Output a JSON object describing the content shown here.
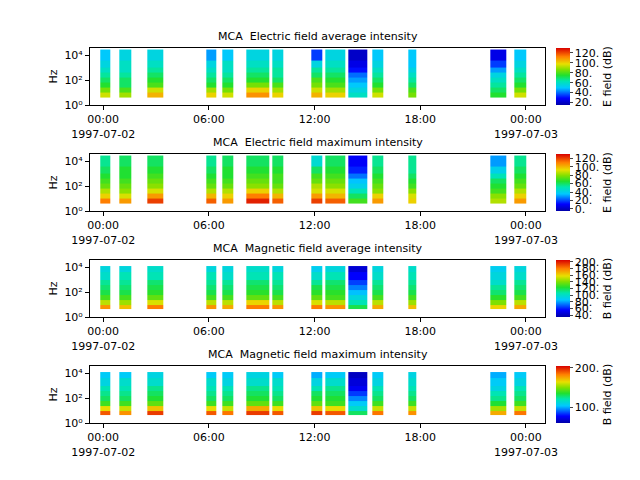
{
  "chart_data": [
    {
      "type": "heatmap",
      "title": "MCA  Electric field average intensity",
      "ylabel": "Hz",
      "log": "y",
      "xlim": [
        "1997-07-01 23:15",
        "1997-07-03 01:05"
      ],
      "xticks": [
        {
          "value": "1997-07-02 00:00",
          "label": "00:00\n1997-07-02"
        },
        {
          "value": "1997-07-02 06:00",
          "label": "06:00"
        },
        {
          "value": "1997-07-02 12:00",
          "label": "12:00"
        },
        {
          "value": "1997-07-02 18:00",
          "label": "18:00"
        },
        {
          "value": "1997-07-03 00:00",
          "label": "00:00\n1997-07-03"
        }
      ],
      "ylim": [
        1,
        40000
      ],
      "yticks": [
        {
          "value": 1,
          "label": "10⁰"
        },
        {
          "value": 100,
          "label": "10²"
        },
        {
          "value": 10000,
          "label": "10⁴"
        }
      ],
      "x": [
        [
          "1997-07-01 23:50",
          "1997-07-02 00:24"
        ],
        [
          "1997-07-02 00:54",
          "1997-07-02 01:36"
        ],
        [
          "1997-07-02 02:30",
          "1997-07-02 03:24"
        ],
        [
          "1997-07-02 05:51",
          "1997-07-02 06:24"
        ],
        [
          "1997-07-02 06:45",
          "1997-07-02 07:24"
        ],
        [
          "1997-07-02 08:06",
          "1997-07-02 09:24"
        ],
        [
          "1997-07-02 09:36",
          "1997-07-02 10:12"
        ],
        [
          "1997-07-02 11:48",
          "1997-07-02 12:27"
        ],
        [
          "1997-07-02 12:36",
          "1997-07-02 13:45"
        ],
        [
          "1997-07-02 13:54",
          "1997-07-02 15:00"
        ],
        [
          "1997-07-02 15:18",
          "1997-07-02 15:54"
        ],
        [
          "1997-07-02 17:18",
          "1997-07-02 17:45"
        ],
        [
          "1997-07-02 22:00",
          "1997-07-02 22:54"
        ],
        [
          "1997-07-02 23:21",
          "1997-07-03 00:00"
        ]
      ],
      "y": [
        4,
        10,
        25,
        63,
        160,
        400,
        1000,
        4000,
        30000
      ],
      "cells": [
        [
          95,
          85,
          75,
          70,
          65,
          60,
          55,
          50
        ],
        [
          90,
          80,
          70,
          70,
          65,
          60,
          60,
          55
        ],
        [
          105,
          95,
          80,
          75,
          70,
          65,
          60,
          55
        ],
        [
          100,
          90,
          75,
          70,
          65,
          60,
          55,
          45
        ],
        [
          95,
          85,
          75,
          70,
          65,
          60,
          60,
          50
        ],
        [
          110,
          100,
          85,
          75,
          70,
          65,
          60,
          55
        ],
        [
          100,
          90,
          80,
          70,
          65,
          65,
          60,
          55
        ],
        [
          105,
          95,
          85,
          80,
          70,
          65,
          55,
          35
        ],
        [
          100,
          90,
          80,
          75,
          70,
          65,
          60,
          55
        ],
        [
          60,
          55,
          50,
          45,
          40,
          30,
          25,
          20
        ],
        [
          95,
          85,
          75,
          70,
          65,
          60,
          55,
          50
        ],
        [
          85,
          80,
          70,
          65,
          60,
          55,
          50,
          50
        ],
        [
          75,
          70,
          65,
          60,
          55,
          45,
          35,
          25
        ],
        [
          95,
          85,
          75,
          70,
          65,
          60,
          55,
          50
        ]
      ],
      "colorbar": {
        "title": "E field (dB)",
        "zlim": [
          15,
          130
        ],
        "zticks": [
          {
            "value": 20,
            "label": "20."
          },
          {
            "value": 40,
            "label": "40."
          },
          {
            "value": 60,
            "label": "60."
          },
          {
            "value": 80,
            "label": "80."
          },
          {
            "value": 100,
            "label": "100."
          },
          {
            "value": 120,
            "label": "120."
          }
        ]
      }
    },
    {
      "type": "heatmap",
      "title": "MCA  Electric field maximum intensity",
      "ylabel": "Hz",
      "log": "y",
      "xlim": [
        "1997-07-01 23:15",
        "1997-07-03 01:05"
      ],
      "xticks": [
        {
          "value": "1997-07-02 00:00",
          "label": "00:00\n1997-07-02"
        },
        {
          "value": "1997-07-02 06:00",
          "label": "06:00"
        },
        {
          "value": "1997-07-02 12:00",
          "label": "12:00"
        },
        {
          "value": "1997-07-02 18:00",
          "label": "18:00"
        },
        {
          "value": "1997-07-03 00:00",
          "label": "00:00\n1997-07-03"
        }
      ],
      "ylim": [
        1,
        40000
      ],
      "yticks": [
        {
          "value": 1,
          "label": "10⁰"
        },
        {
          "value": 100,
          "label": "10²"
        },
        {
          "value": 10000,
          "label": "10⁴"
        }
      ],
      "x": [
        [
          "1997-07-01 23:50",
          "1997-07-02 00:24"
        ],
        [
          "1997-07-02 00:54",
          "1997-07-02 01:36"
        ],
        [
          "1997-07-02 02:30",
          "1997-07-02 03:24"
        ],
        [
          "1997-07-02 05:51",
          "1997-07-02 06:24"
        ],
        [
          "1997-07-02 06:45",
          "1997-07-02 07:24"
        ],
        [
          "1997-07-02 08:06",
          "1997-07-02 09:24"
        ],
        [
          "1997-07-02 09:36",
          "1997-07-02 10:12"
        ],
        [
          "1997-07-02 11:48",
          "1997-07-02 12:27"
        ],
        [
          "1997-07-02 12:36",
          "1997-07-02 13:45"
        ],
        [
          "1997-07-02 13:54",
          "1997-07-02 15:00"
        ],
        [
          "1997-07-02 15:18",
          "1997-07-02 15:54"
        ],
        [
          "1997-07-02 17:18",
          "1997-07-02 17:45"
        ],
        [
          "1997-07-02 22:00",
          "1997-07-02 22:54"
        ],
        [
          "1997-07-02 23:21",
          "1997-07-03 00:00"
        ]
      ],
      "y": [
        4,
        10,
        25,
        63,
        160,
        400,
        1000,
        4000,
        30000
      ],
      "cells": [
        [
          110,
          95,
          85,
          75,
          70,
          65,
          60,
          55
        ],
        [
          105,
          90,
          80,
          75,
          70,
          65,
          65,
          60
        ],
        [
          120,
          105,
          90,
          80,
          75,
          70,
          65,
          60
        ],
        [
          115,
          100,
          85,
          75,
          70,
          65,
          60,
          55
        ],
        [
          105,
          95,
          85,
          75,
          70,
          65,
          65,
          60
        ],
        [
          125,
          110,
          95,
          80,
          75,
          70,
          65,
          60
        ],
        [
          115,
          100,
          85,
          75,
          70,
          70,
          65,
          60
        ],
        [
          120,
          105,
          90,
          85,
          75,
          70,
          60,
          45
        ],
        [
          115,
          100,
          90,
          80,
          75,
          70,
          65,
          60
        ],
        [
          70,
          60,
          50,
          40,
          35,
          25,
          15,
          10
        ],
        [
          105,
          95,
          80,
          75,
          70,
          65,
          60,
          55
        ],
        [
          95,
          90,
          80,
          70,
          65,
          60,
          55,
          55
        ],
        [
          85,
          80,
          70,
          65,
          60,
          50,
          40,
          30
        ],
        [
          105,
          95,
          85,
          75,
          70,
          65,
          60,
          55
        ]
      ],
      "colorbar": {
        "title": "E field (dB)",
        "zlim": [
          -5,
          130
        ],
        "zticks": [
          {
            "value": 0,
            "label": "0."
          },
          {
            "value": 20,
            "label": "20."
          },
          {
            "value": 40,
            "label": "40."
          },
          {
            "value": 60,
            "label": "60."
          },
          {
            "value": 80,
            "label": "80."
          },
          {
            "value": 100,
            "label": "100."
          },
          {
            "value": 120,
            "label": "120."
          }
        ]
      }
    },
    {
      "type": "heatmap",
      "title": "MCA  Magnetic field average intensity",
      "ylabel": "Hz",
      "log": "y",
      "xlim": [
        "1997-07-01 23:15",
        "1997-07-03 01:05"
      ],
      "xticks": [
        {
          "value": "1997-07-02 00:00",
          "label": "00:00\n1997-07-02"
        },
        {
          "value": "1997-07-02 06:00",
          "label": "06:00"
        },
        {
          "value": "1997-07-02 12:00",
          "label": "12:00"
        },
        {
          "value": "1997-07-02 18:00",
          "label": "18:00"
        },
        {
          "value": "1997-07-03 00:00",
          "label": "00:00\n1997-07-03"
        }
      ],
      "ylim": [
        1,
        40000
      ],
      "yticks": [
        {
          "value": 1,
          "label": "10⁰"
        },
        {
          "value": 100,
          "label": "10²"
        },
        {
          "value": 10000,
          "label": "10⁴"
        }
      ],
      "x": [
        [
          "1997-07-01 23:50",
          "1997-07-02 00:24"
        ],
        [
          "1997-07-02 00:54",
          "1997-07-02 01:36"
        ],
        [
          "1997-07-02 02:30",
          "1997-07-02 03:24"
        ],
        [
          "1997-07-02 05:51",
          "1997-07-02 06:24"
        ],
        [
          "1997-07-02 06:45",
          "1997-07-02 07:24"
        ],
        [
          "1997-07-02 08:06",
          "1997-07-02 09:24"
        ],
        [
          "1997-07-02 09:36",
          "1997-07-02 10:12"
        ],
        [
          "1997-07-02 11:48",
          "1997-07-02 12:27"
        ],
        [
          "1997-07-02 12:36",
          "1997-07-02 13:45"
        ],
        [
          "1997-07-02 13:54",
          "1997-07-02 15:00"
        ],
        [
          "1997-07-02 15:18",
          "1997-07-02 15:54"
        ],
        [
          "1997-07-02 17:18",
          "1997-07-02 17:45"
        ],
        [
          "1997-07-02 22:00",
          "1997-07-02 22:54"
        ],
        [
          "1997-07-02 23:21",
          "1997-07-03 00:00"
        ]
      ],
      "y": [
        4,
        10,
        25,
        63,
        160,
        400,
        1000,
        4000,
        13000
      ],
      "cells": [
        [
          175,
          150,
          130,
          120,
          115,
          110,
          100,
          95
        ],
        [
          165,
          145,
          130,
          120,
          115,
          110,
          105,
          95
        ],
        [
          180,
          155,
          135,
          125,
          120,
          115,
          105,
          100
        ],
        [
          175,
          150,
          130,
          120,
          115,
          110,
          105,
          95
        ],
        [
          170,
          150,
          130,
          120,
          115,
          110,
          100,
          95
        ],
        [
          180,
          160,
          135,
          125,
          120,
          115,
          105,
          100
        ],
        [
          175,
          150,
          130,
          120,
          115,
          110,
          105,
          95
        ],
        [
          180,
          155,
          135,
          125,
          120,
          110,
          100,
          90
        ],
        [
          175,
          150,
          130,
          125,
          120,
          115,
          105,
          95
        ],
        [
          120,
          105,
          95,
          85,
          75,
          65,
          55,
          45
        ],
        [
          170,
          150,
          130,
          120,
          115,
          110,
          100,
          95
        ],
        [
          165,
          145,
          130,
          120,
          115,
          110,
          105,
          100
        ],
        [
          160,
          140,
          125,
          115,
          110,
          100,
          95,
          90
        ],
        [
          170,
          150,
          130,
          120,
          115,
          110,
          100,
          95
        ]
      ],
      "colorbar": {
        "title": "B field (dB)",
        "zlim": [
          35,
          205
        ],
        "zticks": [
          {
            "value": 40,
            "label": "40."
          },
          {
            "value": 60,
            "label": "60."
          },
          {
            "value": 80,
            "label": "80."
          },
          {
            "value": 100,
            "label": "100."
          },
          {
            "value": 120,
            "label": "120."
          },
          {
            "value": 140,
            "label": "140."
          },
          {
            "value": 160,
            "label": "160."
          },
          {
            "value": 180,
            "label": "180."
          },
          {
            "value": 200,
            "label": "200."
          }
        ]
      }
    },
    {
      "type": "heatmap",
      "title": "MCA  Magnetic field maximum intensity",
      "ylabel": "Hz",
      "log": "y",
      "xlim": [
        "1997-07-01 23:15",
        "1997-07-03 01:05"
      ],
      "xticks": [
        {
          "value": "1997-07-02 00:00",
          "label": "00:00\n1997-07-02"
        },
        {
          "value": "1997-07-02 06:00",
          "label": "06:00"
        },
        {
          "value": "1997-07-02 12:00",
          "label": "12:00"
        },
        {
          "value": "1997-07-02 18:00",
          "label": "18:00"
        },
        {
          "value": "1997-07-03 00:00",
          "label": "00:00\n1997-07-03"
        }
      ],
      "ylim": [
        1,
        40000
      ],
      "yticks": [
        {
          "value": 1,
          "label": "10⁰"
        },
        {
          "value": 100,
          "label": "10²"
        },
        {
          "value": 10000,
          "label": "10⁴"
        }
      ],
      "x": [
        [
          "1997-07-01 23:50",
          "1997-07-02 00:24"
        ],
        [
          "1997-07-02 00:54",
          "1997-07-02 01:36"
        ],
        [
          "1997-07-02 02:30",
          "1997-07-02 03:24"
        ],
        [
          "1997-07-02 05:51",
          "1997-07-02 06:24"
        ],
        [
          "1997-07-02 06:45",
          "1997-07-02 07:24"
        ],
        [
          "1997-07-02 08:06",
          "1997-07-02 09:24"
        ],
        [
          "1997-07-02 09:36",
          "1997-07-02 10:12"
        ],
        [
          "1997-07-02 11:48",
          "1997-07-02 12:27"
        ],
        [
          "1997-07-02 12:36",
          "1997-07-02 13:45"
        ],
        [
          "1997-07-02 13:54",
          "1997-07-02 15:00"
        ],
        [
          "1997-07-02 15:18",
          "1997-07-02 15:54"
        ],
        [
          "1997-07-02 17:18",
          "1997-07-02 17:45"
        ],
        [
          "1997-07-02 22:00",
          "1997-07-02 22:54"
        ],
        [
          "1997-07-02 23:21",
          "1997-07-03 00:00"
        ]
      ],
      "y": [
        4,
        10,
        25,
        63,
        160,
        400,
        1000,
        4000,
        13000
      ],
      "cells": [
        [
          190,
          165,
          140,
          130,
          125,
          120,
          110,
          105
        ],
        [
          180,
          160,
          140,
          130,
          125,
          120,
          115,
          105
        ],
        [
          195,
          170,
          145,
          135,
          130,
          125,
          115,
          110
        ],
        [
          190,
          165,
          140,
          130,
          125,
          120,
          115,
          105
        ],
        [
          185,
          160,
          140,
          130,
          125,
          120,
          110,
          105
        ],
        [
          195,
          175,
          145,
          135,
          130,
          125,
          115,
          110
        ],
        [
          190,
          165,
          140,
          130,
          125,
          120,
          115,
          105
        ],
        [
          195,
          170,
          145,
          135,
          130,
          120,
          110,
          100
        ],
        [
          190,
          165,
          140,
          135,
          130,
          125,
          115,
          105
        ],
        [
          130,
          115,
          105,
          95,
          85,
          75,
          70,
          65
        ],
        [
          185,
          160,
          140,
          130,
          125,
          120,
          110,
          105
        ],
        [
          180,
          160,
          140,
          130,
          125,
          120,
          115,
          110
        ],
        [
          175,
          155,
          135,
          125,
          120,
          110,
          105,
          100
        ],
        [
          185,
          160,
          140,
          130,
          125,
          120,
          110,
          105
        ]
      ],
      "colorbar": {
        "title": "B field (dB)",
        "zlim": [
          60,
          205
        ],
        "zticks": [
          {
            "value": 100,
            "label": "100."
          },
          {
            "value": 200,
            "label": "200."
          }
        ]
      }
    }
  ]
}
